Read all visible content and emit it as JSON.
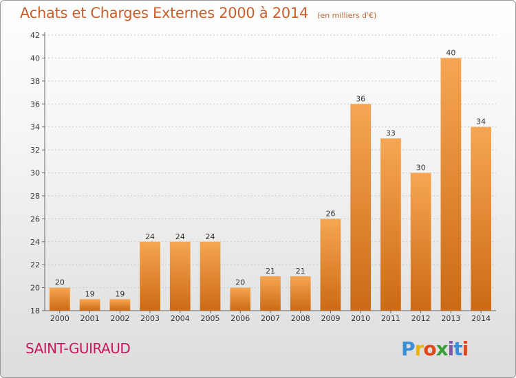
{
  "header": {
    "title": "Achats et Charges Externes 2000 à 2014",
    "subtitle": "(en milliers d'€)"
  },
  "footer": {
    "commune": "SAINT-GUIRAUD",
    "logo_text": "Proxiti"
  },
  "colors": {
    "title": "#c8602e",
    "commune": "#c8175d",
    "bar_top": "#f6a653",
    "bar_bottom": "#cc6a14"
  },
  "chart_data": {
    "type": "bar",
    "title": "Achats et Charges Externes 2000 à 2014",
    "subtitle": "(en milliers d'€)",
    "xlabel": "",
    "ylabel": "",
    "categories": [
      "2000",
      "2001",
      "2002",
      "2003",
      "2004",
      "2005",
      "2006",
      "2007",
      "2008",
      "2009",
      "2010",
      "2011",
      "2012",
      "2013",
      "2014"
    ],
    "values": [
      20,
      19,
      19,
      24,
      24,
      24,
      20,
      21,
      21,
      26,
      36,
      33,
      30,
      40,
      34
    ],
    "ylim": [
      18,
      42
    ],
    "yticks": [
      18,
      20,
      22,
      24,
      26,
      28,
      30,
      32,
      34,
      36,
      38,
      40,
      42
    ],
    "grid": true,
    "legend": "none",
    "data_labels": true
  }
}
